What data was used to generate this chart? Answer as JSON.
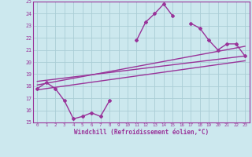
{
  "xlabel": "Windchill (Refroidissement éolien,°C)",
  "xlim": [
    -0.5,
    23.5
  ],
  "ylim": [
    15,
    25
  ],
  "yticks": [
    15,
    16,
    17,
    18,
    19,
    20,
    21,
    22,
    23,
    24,
    25
  ],
  "xticks": [
    0,
    1,
    2,
    3,
    4,
    5,
    6,
    7,
    8,
    9,
    10,
    11,
    12,
    13,
    14,
    15,
    16,
    17,
    18,
    19,
    20,
    21,
    22,
    23
  ],
  "background_color": "#cce8ee",
  "grid_color": "#aacdd6",
  "line_color": "#993399",
  "line_width": 1.0,
  "marker": "D",
  "marker_size": 2.0,
  "data_main": {
    "x": [
      0,
      1,
      2,
      3,
      4,
      5,
      6,
      7,
      8,
      11,
      12,
      13,
      14,
      15,
      17,
      18,
      19,
      20,
      21,
      22,
      23
    ],
    "y": [
      17.8,
      18.3,
      17.8,
      16.8,
      15.3,
      15.5,
      15.8,
      15.5,
      16.8,
      21.8,
      23.3,
      24.0,
      24.8,
      23.8,
      23.2,
      22.8,
      21.8,
      21.0,
      21.5,
      21.5,
      20.5
    ]
  },
  "data_seg1_x": [
    0,
    1,
    2,
    3,
    4,
    5,
    6,
    7,
    8
  ],
  "data_seg1_y": [
    17.8,
    18.3,
    17.8,
    16.8,
    15.3,
    15.5,
    15.8,
    15.5,
    16.8
  ],
  "data_seg2_x": [
    11,
    12,
    13,
    14,
    15
  ],
  "data_seg2_y": [
    21.8,
    23.3,
    24.0,
    24.8,
    23.8
  ],
  "data_seg3_x": [
    17,
    18,
    19,
    20,
    21,
    22,
    23
  ],
  "data_seg3_y": [
    23.2,
    22.8,
    21.8,
    21.0,
    21.5,
    21.5,
    20.5
  ],
  "data_trend1": {
    "x": [
      0,
      23
    ],
    "y": [
      18.1,
      21.3
    ]
  },
  "data_trend2": {
    "x": [
      0,
      23
    ],
    "y": [
      18.4,
      20.5
    ]
  },
  "data_trend3": {
    "x": [
      0,
      23
    ],
    "y": [
      17.7,
      20.1
    ]
  }
}
